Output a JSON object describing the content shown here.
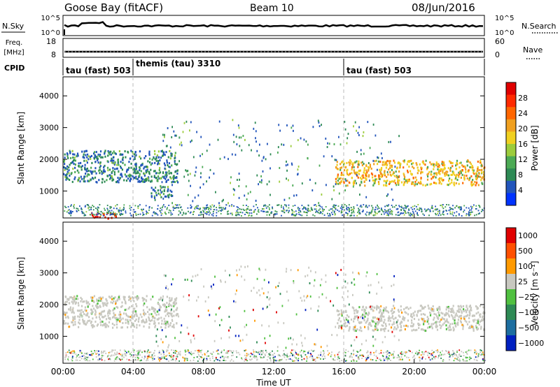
{
  "header": {
    "title_left": "Goose Bay (fitACF)",
    "title_center": "Beam 10",
    "title_right": "08/Jun/2016"
  },
  "strips": {
    "nsky_label": "N.Sky",
    "nsky_ticks": [
      "10^5",
      "10^0"
    ],
    "nsearch_label": "N.Search",
    "nsearch_ticks": [
      "10^5",
      "10^0"
    ],
    "freq_label_line1": "Freq.",
    "freq_label_line2": "[MHz]",
    "freq_ticks": [
      "18",
      "8"
    ],
    "nave_label": "Nave",
    "nave_ticks": [
      "60",
      "0"
    ],
    "cpid_label": "CPID",
    "cpid_segments": [
      {
        "label": "tau (fast) 503",
        "start_hour": 0,
        "end_hour": 4
      },
      {
        "label": "themis (tau) 3310",
        "start_hour": 4,
        "end_hour": 16
      },
      {
        "label": "tau (fast) 503",
        "start_hour": 16,
        "end_hour": 24
      }
    ]
  },
  "chart_data": [
    {
      "type": "heatmap",
      "panel": "power",
      "ylabel": "Slant Range [km]",
      "yticks": [
        "1000",
        "2000",
        "3000",
        "4000"
      ],
      "ylim": [
        150,
        4600
      ],
      "xlim": [
        0,
        24
      ],
      "colorbar_label": "Power [dB]",
      "colorbar_ticks": [
        "4",
        "8",
        "12",
        "16",
        "20",
        "24",
        "28"
      ],
      "colors": [
        "#0033ff",
        "#2255bb",
        "#2e8a55",
        "#4caa55",
        "#9ccc3c",
        "#f0d020",
        "#f0a020",
        "#ff6600",
        "#ff2a00",
        "#e00000"
      ],
      "echo_regions": [
        {
          "start_hour": 0.0,
          "end_hour": 6.5,
          "range_low_km": 1300,
          "range_high_km": 2300,
          "value_db": 10
        },
        {
          "start_hour": 5.0,
          "end_hour": 6.2,
          "range_low_km": 800,
          "range_high_km": 1200,
          "value_db": 8
        },
        {
          "start_hour": 15.5,
          "end_hour": 24.0,
          "range_low_km": 1200,
          "range_high_km": 2000,
          "value_db": 18
        },
        {
          "start_hour": 1.5,
          "end_hour": 3.0,
          "range_low_km": 150,
          "range_high_km": 350,
          "value_db": 28
        }
      ]
    },
    {
      "type": "heatmap",
      "panel": "velocity",
      "ylabel": "Slant Range [km]",
      "yticks": [
        "1000",
        "2000",
        "3000",
        "4000"
      ],
      "ylim": [
        150,
        4600
      ],
      "xlim": [
        0,
        24
      ],
      "xlabel": "Time UT",
      "xticks": [
        "00:00",
        "04:00",
        "08:00",
        "12:00",
        "16:00",
        "20:00",
        "00:00"
      ],
      "colorbar_label": "Velocity [m s⁻¹]",
      "colorbar_ticks": [
        "1000",
        "500",
        "100",
        "25",
        "−25",
        "−100",
        "−500",
        "−1000"
      ],
      "colors": [
        "#0020c0",
        "#1d6ea0",
        "#2e8a55",
        "#50c040",
        "#c8c8c0",
        "#ff9a00",
        "#ff5000",
        "#e00000"
      ],
      "echo_regions": [
        {
          "start_hour": 0.0,
          "end_hour": 6.5,
          "range_low_km": 1300,
          "range_high_km": 2300,
          "value_ms": 0
        },
        {
          "start_hour": 15.5,
          "end_hour": 24.0,
          "range_low_km": 1200,
          "range_high_km": 2000,
          "value_ms": 0
        }
      ]
    }
  ]
}
